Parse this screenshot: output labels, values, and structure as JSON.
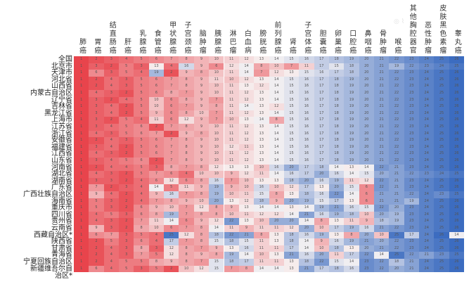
{
  "chart_data": {
    "type": "heatmap",
    "title": "",
    "color_scale": {
      "low": "#e8444c",
      "mid": "#f7f3f3",
      "high": "#3c6cc0",
      "range": [
        1,
        26
      ]
    },
    "columns": [
      "肺癌",
      "胃癌",
      "结直肠癌",
      "肝癌",
      "乳腺癌",
      "食管癌",
      "甲状腺癌",
      "子宫颈癌",
      "脑肿瘤",
      "胰腺癌",
      "淋巴瘤",
      "白血病",
      "膀胱癌",
      "前列腺癌",
      "肾癌",
      "子宫体癌",
      "胆囊癌",
      "卵巢癌",
      "口腔癌",
      "鼻咽癌",
      "骨肿瘤",
      "喉癌",
      "其他胸腔器官",
      "恶性肿瘤",
      "皮肤黑色素瘤",
      "睾丸癌"
    ],
    "rows": [
      "全国",
      "北京市",
      "天津市",
      "河北省",
      "山西省",
      "内蒙古自治区",
      "辽宁省",
      "吉林省",
      "黑龙江省",
      "上海市",
      "江苏省",
      "浙江省",
      "安徽省",
      "福建省",
      "江西省",
      "山东省",
      "河南省",
      "湖北省",
      "湖南省",
      "广东省",
      "广西壮族自治区",
      "海南省",
      "重庆市",
      "四川省",
      "贵州省",
      "云南省",
      "西藏自治区*",
      "陕西省",
      "甘肃省",
      "青海省",
      "宁夏回族自治区",
      "新疆维吾尔自治区*"
    ],
    "values": [
      [
        1,
        2,
        3,
        4,
        5,
        6,
        7,
        8,
        9,
        10,
        11,
        12,
        13,
        14,
        15,
        16,
        17,
        18,
        19,
        20,
        21,
        22,
        23,
        24,
        25,
        26
      ],
      [
        1,
        3,
        2,
        5,
        3,
        13,
        4,
        16,
        9,
        6,
        12,
        14,
        8,
        10,
        7,
        11,
        17,
        15,
        18,
        20,
        21,
        19,
        22,
        23,
        24,
        25
      ],
      [
        1,
        6,
        3,
        5,
        4,
        19,
        2,
        9,
        8,
        10,
        11,
        14,
        7,
        12,
        13,
        15,
        16,
        17,
        18,
        20,
        21,
        22,
        23,
        24,
        25,
        26
      ],
      [
        1,
        2,
        4,
        3,
        5,
        6,
        7,
        8,
        9,
        11,
        10,
        12,
        13,
        14,
        15,
        16,
        17,
        18,
        19,
        20,
        21,
        22,
        23,
        24,
        25,
        26
      ],
      [
        1,
        2,
        4,
        3,
        5,
        6,
        7,
        8,
        9,
        10,
        11,
        13,
        12,
        14,
        15,
        16,
        17,
        18,
        19,
        20,
        21,
        22,
        23,
        24,
        25,
        26
      ],
      [
        1,
        4,
        3,
        2,
        5,
        6,
        8,
        7,
        9,
        10,
        11,
        12,
        13,
        14,
        15,
        16,
        17,
        18,
        19,
        20,
        21,
        22,
        23,
        24,
        25,
        26
      ],
      [
        1,
        3,
        2,
        4,
        5,
        10,
        6,
        8,
        9,
        7,
        11,
        12,
        13,
        14,
        15,
        16,
        17,
        18,
        19,
        20,
        21,
        22,
        23,
        24,
        25,
        26
      ],
      [
        1,
        3,
        4,
        2,
        5,
        10,
        6,
        7,
        9,
        8,
        11,
        14,
        13,
        12,
        15,
        16,
        17,
        18,
        19,
        20,
        21,
        22,
        23,
        24,
        25,
        26
      ],
      [
        1,
        3,
        4,
        2,
        5,
        9,
        6,
        8,
        10,
        7,
        11,
        12,
        13,
        14,
        15,
        16,
        17,
        18,
        19,
        20,
        21,
        22,
        23,
        24,
        25,
        26
      ],
      [
        1,
        3,
        2,
        5,
        4,
        11,
        6,
        12,
        9,
        7,
        10,
        13,
        14,
        8,
        15,
        16,
        17,
        18,
        19,
        20,
        21,
        22,
        23,
        24,
        25,
        26
      ],
      [
        1,
        3,
        4,
        5,
        6,
        2,
        7,
        8,
        9,
        10,
        11,
        12,
        13,
        14,
        15,
        16,
        17,
        18,
        19,
        20,
        21,
        22,
        23,
        24,
        25,
        26
      ],
      [
        1,
        4,
        3,
        5,
        6,
        7,
        2,
        9,
        8,
        10,
        11,
        12,
        13,
        14,
        15,
        16,
        17,
        18,
        19,
        20,
        21,
        22,
        23,
        24,
        25,
        26
      ],
      [
        1,
        2,
        4,
        3,
        5,
        6,
        7,
        8,
        9,
        10,
        11,
        12,
        13,
        14,
        15,
        16,
        17,
        18,
        19,
        20,
        21,
        22,
        23,
        24,
        25,
        26
      ],
      [
        1,
        3,
        4,
        2,
        5,
        6,
        7,
        8,
        9,
        10,
        12,
        11,
        13,
        14,
        15,
        16,
        17,
        18,
        19,
        20,
        21,
        22,
        23,
        24,
        25,
        26
      ],
      [
        1,
        4,
        3,
        2,
        5,
        6,
        7,
        8,
        9,
        10,
        11,
        12,
        13,
        14,
        15,
        16,
        17,
        18,
        19,
        20,
        21,
        22,
        23,
        24,
        25,
        26
      ],
      [
        1,
        3,
        4,
        5,
        6,
        2,
        7,
        8,
        9,
        10,
        11,
        12,
        13,
        14,
        15,
        16,
        17,
        18,
        19,
        20,
        21,
        22,
        23,
        24,
        25,
        26
      ],
      [
        1,
        2,
        4,
        4,
        5,
        3,
        8,
        7,
        8,
        12,
        13,
        13,
        10,
        16,
        20,
        17,
        18,
        14,
        13,
        14,
        22,
        21,
        23,
        24,
        25,
        26
      ],
      [
        1,
        4,
        3,
        2,
        5,
        7,
        6,
        4,
        10,
        10,
        9,
        12,
        11,
        14,
        16,
        17,
        20,
        16,
        14,
        15,
        20,
        21,
        22,
        23,
        24,
        25
      ],
      [
        1,
        3,
        3,
        2,
        4,
        6,
        12,
        6,
        8,
        16,
        7,
        10,
        13,
        13,
        18,
        20,
        16,
        19,
        11,
        12,
        22,
        21,
        23,
        24,
        25,
        26
      ],
      [
        1,
        7,
        2,
        3,
        4,
        14,
        5,
        11,
        9,
        19,
        9,
        10,
        16,
        10,
        12,
        17,
        13,
        20,
        15,
        6,
        22,
        21,
        23,
        24,
        25,
        26
      ],
      [
        1,
        9,
        4,
        2,
        4,
        9,
        16,
        7,
        8,
        19,
        10,
        11,
        15,
        8,
        13,
        18,
        16,
        22,
        14,
        6,
        21,
        21,
        22,
        24,
        23,
        25
      ],
      [
        1,
        5,
        3,
        2,
        4,
        7,
        8,
        9,
        10,
        20,
        13,
        12,
        18,
        9,
        20,
        19,
        15,
        17,
        13,
        6,
        21,
        21,
        19,
        24,
        25,
        26
      ],
      [
        1,
        5,
        3,
        2,
        6,
        9,
        10,
        7,
        12,
        8,
        9,
        13,
        14,
        14,
        13,
        14,
        19,
        21,
        16,
        15,
        22,
        20,
        23,
        24,
        25,
        26
      ],
      [
        1,
        4,
        5,
        3,
        6,
        8,
        19,
        7,
        8,
        8,
        10,
        11,
        12,
        12,
        14,
        21,
        16,
        19,
        18,
        10,
        20,
        19,
        23,
        24,
        25,
        26
      ],
      [
        1,
        4,
        3,
        2,
        7,
        11,
        14,
        6,
        9,
        12,
        22,
        13,
        10,
        20,
        20,
        14,
        8,
        13,
        11,
        9,
        18,
        19,
        23,
        24,
        25,
        26
      ],
      [
        1,
        9,
        3,
        2,
        8,
        10,
        6,
        7,
        8,
        14,
        11,
        9,
        11,
        11,
        12,
        20,
        10,
        17,
        19,
        16,
        21,
        22,
        23,
        24,
        25,
        26
      ],
      [
        1,
        6,
        7,
        3,
        5,
        4,
        25,
        12,
        8,
        18,
        22,
        21,
        8,
        13,
        18,
        16,
        19,
        13,
        8,
        20,
        10,
        25,
        17,
        24,
        26,
        14
      ],
      [
        1,
        2,
        5,
        3,
        6,
        4,
        17,
        7,
        8,
        15,
        18,
        15,
        11,
        13,
        18,
        14,
        9,
        16,
        19,
        21,
        20,
        22,
        23,
        24,
        25,
        26
      ],
      [
        1,
        2,
        4,
        3,
        8,
        3,
        12,
        8,
        7,
        9,
        13,
        16,
        11,
        11,
        17,
        14,
        10,
        18,
        13,
        20,
        21,
        22,
        23,
        24,
        25,
        26
      ],
      [
        1,
        2,
        4,
        3,
        7,
        5,
        12,
        8,
        9,
        8,
        19,
        14,
        10,
        13,
        21,
        16,
        20,
        11,
        17,
        22,
        14,
        25,
        22,
        21,
        23,
        25
      ],
      [
        1,
        2,
        4,
        5,
        5,
        8,
        9,
        8,
        7,
        15,
        18,
        17,
        11,
        11,
        13,
        18,
        22,
        15,
        14,
        23,
        22,
        18,
        21,
        24,
        25,
        26
      ],
      [
        1,
        6,
        4,
        5,
        3,
        5,
        2,
        10,
        12,
        15,
        7,
        8,
        14,
        14,
        13,
        21,
        17,
        18,
        16,
        23,
        22,
        20,
        21,
        24,
        25,
        26
      ]
    ]
  }
}
